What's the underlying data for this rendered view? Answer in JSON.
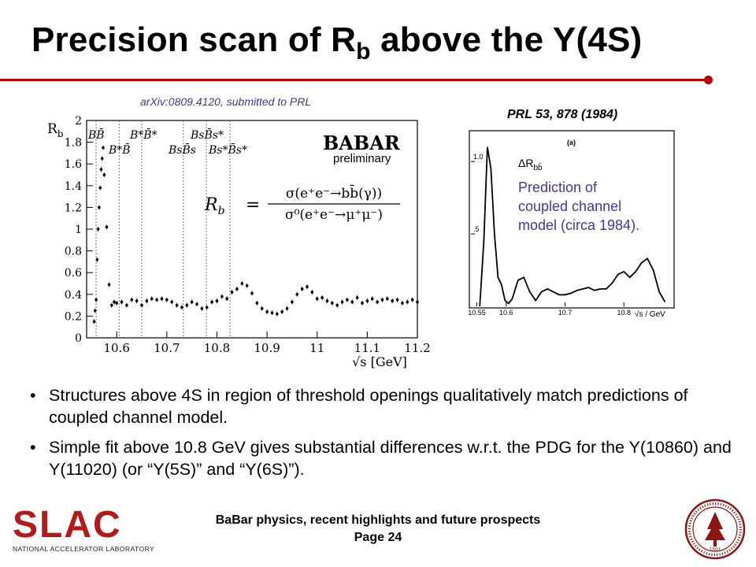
{
  "slide": {
    "title_main": "Precision scan of R",
    "title_sub": "b",
    "title_rest": " above the Y(4S)",
    "accent_color": "#c00000"
  },
  "left_figure": {
    "citation": "arXiv:0809.4120, submitted to PRL",
    "logo_text": "BABAR",
    "logo_sub": "preliminary",
    "formula_lhs": "R",
    "formula_lhs_sub": "b",
    "formula_num": "σ(e⁺e⁻→bb̄(γ))",
    "formula_den": "σ⁰(e⁺e⁻→μ⁺μ⁻)",
    "threshold_labels": [
      "BB̄",
      "B*B̄",
      "B*B̄*",
      "BsB̄s",
      "BsB̄s*",
      "Bs*B̄s*"
    ]
  },
  "right_figure": {
    "citation": "PRL 53, 878 (1984)",
    "panel_label": "(a)",
    "quantity_label": "ΔR",
    "quantity_sub": "bb̄",
    "annotation": [
      "Prediction of",
      "coupled channel",
      "model (circa 1984)."
    ]
  },
  "chart_data": [
    {
      "type": "scatter",
      "title": "",
      "xlabel": "√s [GeV]",
      "ylabel": "R_b",
      "xlim": [
        10.54,
        11.2
      ],
      "ylim": [
        0,
        2
      ],
      "x_ticks": [
        "10.6",
        "10.7",
        "10.8",
        "10.9",
        "11",
        "11.1",
        "11.2"
      ],
      "y_ticks": [
        "0",
        "0.2",
        "0.4",
        "0.6",
        "0.8",
        "1",
        "1.2",
        "1.4",
        "1.6",
        "1.8",
        "2"
      ],
      "thresholds_gev": [
        10.559,
        10.605,
        10.65,
        10.733,
        10.779,
        10.826
      ],
      "series": [
        {
          "x": [
            10.555,
            10.557,
            10.559,
            10.561,
            10.563,
            10.565,
            10.567,
            10.569,
            10.571,
            10.573,
            10.575,
            10.58,
            10.585,
            10.59,
            10.595,
            10.6,
            10.61,
            10.62,
            10.63,
            10.64,
            10.65,
            10.66,
            10.67,
            10.68,
            10.69,
            10.7,
            10.71,
            10.72,
            10.73,
            10.74,
            10.75,
            10.76,
            10.77,
            10.78,
            10.79,
            10.8,
            10.81,
            10.82,
            10.83,
            10.84,
            10.85,
            10.86,
            10.87,
            10.88,
            10.89,
            10.9,
            10.91,
            10.92,
            10.93,
            10.94,
            10.95,
            10.96,
            10.97,
            10.98,
            10.99,
            11.0,
            11.01,
            11.02,
            11.03,
            11.04,
            11.05,
            11.06,
            11.07,
            11.08,
            11.09,
            11.1,
            11.11,
            11.12,
            11.13,
            11.14,
            11.15,
            11.16,
            11.17,
            11.18,
            11.19,
            11.2
          ],
          "y": [
            0.15,
            0.25,
            0.35,
            0.72,
            1.0,
            1.2,
            1.38,
            1.55,
            1.65,
            1.75,
            1.5,
            1.02,
            0.49,
            0.3,
            0.33,
            0.32,
            0.33,
            0.3,
            0.35,
            0.34,
            0.3,
            0.34,
            0.36,
            0.35,
            0.36,
            0.35,
            0.33,
            0.3,
            0.28,
            0.3,
            0.33,
            0.31,
            0.27,
            0.28,
            0.33,
            0.34,
            0.38,
            0.36,
            0.42,
            0.45,
            0.5,
            0.48,
            0.41,
            0.32,
            0.27,
            0.24,
            0.23,
            0.22,
            0.24,
            0.27,
            0.33,
            0.4,
            0.45,
            0.47,
            0.42,
            0.36,
            0.37,
            0.34,
            0.32,
            0.3,
            0.33,
            0.35,
            0.33,
            0.37,
            0.32,
            0.34,
            0.36,
            0.33,
            0.35,
            0.36,
            0.34,
            0.35,
            0.32,
            0.33,
            0.35,
            0.33
          ]
        }
      ]
    },
    {
      "type": "line",
      "title": "",
      "xlabel": "√s / GeV",
      "ylabel": "ΔR_bb̄",
      "xlim": [
        10.54,
        10.88
      ],
      "ylim": [
        0,
        1.18
      ],
      "x_ticks": [
        "10.55",
        "10.6",
        "10.7",
        "10.8"
      ],
      "y_ticks": [
        ".5",
        "1.0"
      ],
      "series": [
        {
          "x": [
            10.555,
            10.562,
            10.568,
            10.574,
            10.58,
            10.586,
            10.592,
            10.598,
            10.604,
            10.61,
            10.62,
            10.63,
            10.64,
            10.65,
            10.66,
            10.67,
            10.68,
            10.69,
            10.7,
            10.71,
            10.72,
            10.73,
            10.74,
            10.75,
            10.76,
            10.77,
            10.78,
            10.79,
            10.8,
            10.81,
            10.82,
            10.83,
            10.84,
            10.85,
            10.86,
            10.87
          ],
          "y": [
            0.0,
            0.45,
            1.1,
            0.95,
            0.5,
            0.2,
            0.15,
            0.04,
            0.02,
            0.05,
            0.18,
            0.2,
            0.1,
            0.04,
            0.1,
            0.12,
            0.1,
            0.08,
            0.08,
            0.09,
            0.11,
            0.12,
            0.13,
            0.11,
            0.12,
            0.12,
            0.16,
            0.22,
            0.24,
            0.2,
            0.24,
            0.3,
            0.33,
            0.25,
            0.1,
            0.03
          ]
        }
      ]
    }
  ],
  "bullets": [
    "Structures above 4S in region of threshold openings qualitatively match predictions of coupled channel model.",
    "Simple fit above 10.8 GeV gives substantial differences w.r.t. the PDG for the Y(10860) and Y(11020) (or “Y(5S)” and “Y(6S)”)."
  ],
  "footer": {
    "line1": "BaBar physics, recent highlights and future prospects",
    "line2": "Page 24",
    "logo_text": "SLAC",
    "logo_sub": "NATIONAL ACCELERATOR LABORATORY",
    "seal_year": "1891"
  }
}
